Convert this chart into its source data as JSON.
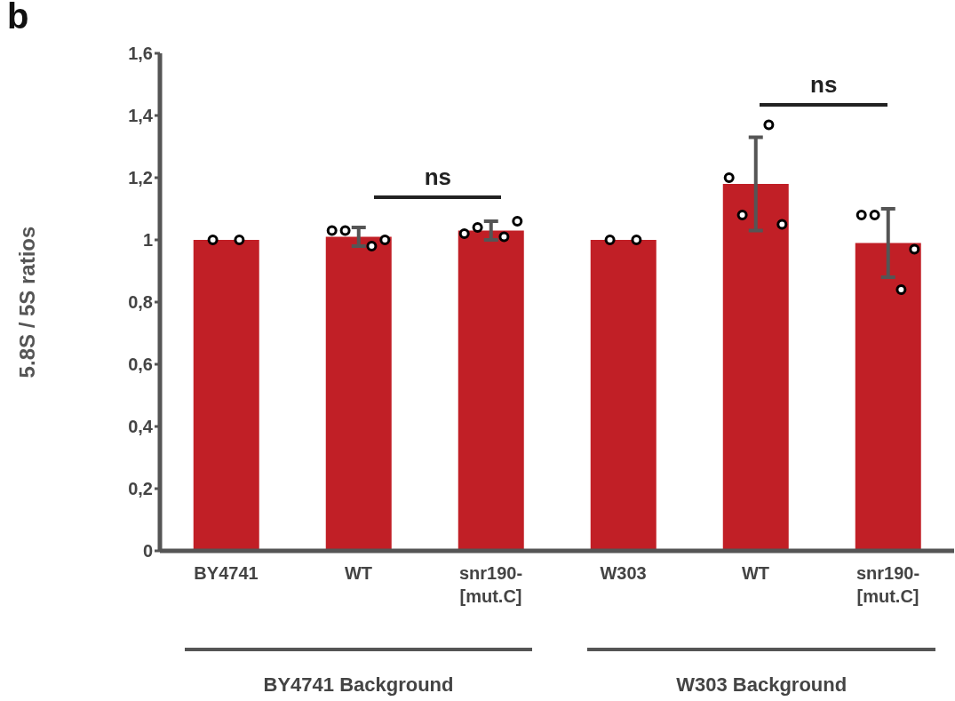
{
  "chart_data": [
    {
      "type": "bar",
      "categories": [
        "BY4741",
        "WT",
        "snr190-[mut.C]"
      ],
      "ylabel": "5.8S / 5S ratios",
      "ylim": [
        0,
        1.6
      ],
      "yticks": [
        0,
        {
          "value": 0.2,
          "label": "0,2"
        },
        {
          "value": 0.4,
          "label": "0,4"
        },
        {
          "value": 0.6,
          "label": "0,6"
        },
        {
          "value": 0.8,
          "label": "0,8"
        },
        1,
        {
          "value": 1.2,
          "label": "1,2"
        },
        {
          "value": 1.4,
          "label": "1,4"
        },
        {
          "value": 1.6,
          "label": "1,6"
        }
      ],
      "series": [
        {
          "type": "bar",
          "color": "#c11f26",
          "values": [
            1.0,
            1.01,
            1.03
          ],
          "errors": [
            0,
            0.03,
            0.03
          ]
        },
        {
          "type": "scatter",
          "color": "#000000",
          "x": [
            "BY4741",
            "BY4741",
            "WT",
            "WT",
            "WT",
            "WT",
            "snr190-[mut.C]",
            "snr190-[mut.C]",
            "snr190-[mut.C]",
            "snr190-[mut.C]"
          ],
          "values": [
            1.0,
            1.0,
            1.03,
            1.03,
            0.98,
            1.0,
            1.02,
            1.04,
            1.01,
            1.06
          ]
        }
      ],
      "marker": "circle",
      "annotations": [
        "b",
        "ns",
        "BY4741 Background"
      ]
    },
    {
      "type": "bar",
      "categories": [
        "W303",
        "WT",
        "snr190-[mut.C]"
      ],
      "ylim": [
        0,
        1.6
      ],
      "tick_labels": "x",
      "series": [
        {
          "type": "bar",
          "color": "#c11f26",
          "values": [
            1.0,
            1.18,
            0.99
          ],
          "errors": [
            0,
            0.15,
            0.11
          ]
        },
        {
          "type": "scatter",
          "color": "#000000",
          "x": [
            "W303",
            "W303",
            "WT",
            "WT",
            "WT",
            "WT",
            "snr190-[mut.C]",
            "snr190-[mut.C]",
            "snr190-[mut.C]",
            "snr190-[mut.C]"
          ],
          "values": [
            1.0,
            1.0,
            1.2,
            1.08,
            1.37,
            1.05,
            1.08,
            1.08,
            0.84,
            0.97
          ]
        }
      ],
      "marker": "circle",
      "annotations": [
        "ns",
        "W303 Background"
      ]
    }
  ]
}
